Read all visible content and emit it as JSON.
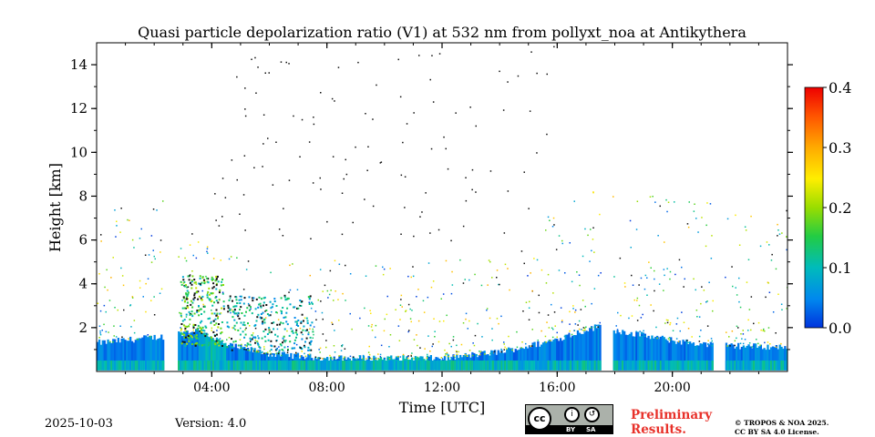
{
  "chart_data": {
    "type": "heatmap",
    "title": "Quasi particle depolarization ratio (V1) at 532 nm from pollyxt_noa at Antikythera",
    "xlabel": "Time [UTC]",
    "ylabel": "Height [km]",
    "xlim": [
      0,
      24
    ],
    "ylim": [
      0,
      15
    ],
    "x_tick_labels": [
      {
        "value": 4,
        "label": "04:00"
      },
      {
        "value": 8,
        "label": "08:00"
      },
      {
        "value": 12,
        "label": "12:00"
      },
      {
        "value": 16,
        "label": "16:00"
      },
      {
        "value": 20,
        "label": "20:00"
      }
    ],
    "y_tick_labels": [
      {
        "value": 2,
        "label": "2"
      },
      {
        "value": 4,
        "label": "4"
      },
      {
        "value": 6,
        "label": "6"
      },
      {
        "value": 8,
        "label": "8"
      },
      {
        "value": 10,
        "label": "10"
      },
      {
        "value": 12,
        "label": "12"
      },
      {
        "value": 14,
        "label": "14"
      }
    ],
    "colorbar": {
      "min": 0.0,
      "max": 0.4,
      "ticks": [
        {
          "value": 0.0,
          "label": "0.0"
        },
        {
          "value": 0.1,
          "label": "0.1"
        },
        {
          "value": 0.2,
          "label": "0.2"
        },
        {
          "value": 0.3,
          "label": "0.3"
        },
        {
          "value": 0.4,
          "label": "0.4"
        }
      ],
      "colors": [
        "#0033dd",
        "#0088ee",
        "#00bbbb",
        "#22cc44",
        "#99dd00",
        "#ffee00",
        "#ffaa00",
        "#ff5500",
        "#ee0000"
      ]
    },
    "data_gaps_hours": [
      [
        2.3,
        2.8
      ],
      [
        17.5,
        17.9
      ],
      [
        21.4,
        21.8
      ]
    ],
    "boundary_layer_top_km": [
      [
        0.0,
        1.3
      ],
      [
        2.3,
        1.6
      ],
      [
        3.5,
        1.9
      ],
      [
        4.5,
        1.2
      ],
      [
        6.0,
        0.8
      ],
      [
        8.0,
        0.6
      ],
      [
        10.0,
        0.6
      ],
      [
        12.0,
        0.6
      ],
      [
        14.0,
        0.9
      ],
      [
        15.5,
        1.3
      ],
      [
        17.5,
        2.1
      ],
      [
        17.9,
        1.9
      ],
      [
        20.0,
        1.4
      ],
      [
        21.4,
        1.2
      ],
      [
        24.0,
        1.1
      ]
    ],
    "aerosol_layers": [
      {
        "start": 2.9,
        "end": 4.4,
        "bottom_km": 1.2,
        "top_km": 4.4,
        "depol": 0.15
      },
      {
        "start": 4.5,
        "end": 7.5,
        "bottom_km": 1.0,
        "top_km": 3.5,
        "depol": 0.1
      }
    ]
  },
  "footer": {
    "date": "2025-10-03",
    "version": "Version: 4.0",
    "preliminary_line1": "Preliminary",
    "preliminary_line2": "Results.",
    "copyright_line1": "© TROPOS & NOA 2025.",
    "copyright_line2": "CC BY SA 4.0 License.",
    "cc_badge": "cc",
    "cc_by": "BY",
    "cc_sa": "SA"
  }
}
